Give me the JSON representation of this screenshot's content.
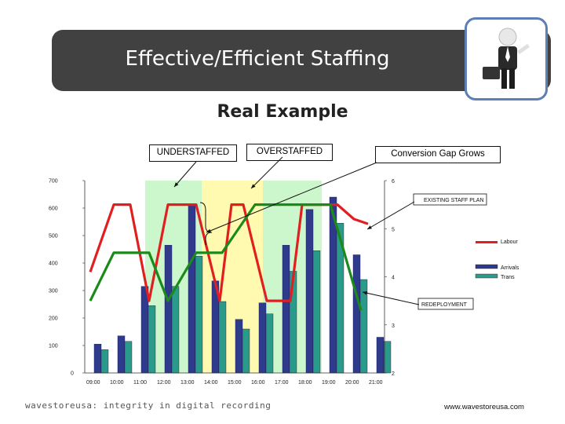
{
  "slide": {
    "title": "Effective/Efficient Staffing",
    "subtitle": "Real Example",
    "footer_logo_text": "wavestoreusa: integrity in digital recording",
    "footer_url": "www.wavestoreusa.com",
    "photo_icon": "businessman-with-briefcase-icon"
  },
  "callouts": {
    "understaffed": "UNDERSTAFFED",
    "overstaffed": "OVERSTAFFED",
    "conversion": "Conversion Gap Grows"
  },
  "annotations": {
    "existing_staff_plan": "EXISTING STAFF PLAN",
    "redeployment": "REDEPLOYMENT"
  },
  "chart_data": {
    "type": "bar",
    "categories": [
      "09:00",
      "10:00",
      "11:00",
      "12:00",
      "13:00",
      "14:00",
      "15:00",
      "16:00",
      "17:00",
      "18:00",
      "19:00",
      "20:00",
      "21:00"
    ],
    "ylim": [
      0,
      700
    ],
    "y_ticks": [
      "0",
      "100",
      "200",
      "300",
      "400",
      "500",
      "600",
      "700"
    ],
    "y2lim": [
      2,
      6
    ],
    "y2_ticks": [
      "2",
      "3",
      "4",
      "5",
      "6"
    ],
    "x_tick_labels": [
      "09:00",
      "10:00",
      "11:00",
      "12:00",
      "13:00",
      "14:00",
      "15:00",
      "16:00",
      "17:00",
      "18:00",
      "19:00",
      "20:00",
      "21:00"
    ],
    "bar_series": [
      {
        "name": "Arrivals",
        "color": "#2e3a8c",
        "values": [
          105,
          135,
          315,
          465,
          615,
          335,
          195,
          255,
          465,
          595,
          640,
          430,
          130
        ]
      },
      {
        "name": "Trans",
        "color": "#2a9a8a",
        "values": [
          85,
          115,
          245,
          315,
          425,
          260,
          160,
          215,
          370,
          445,
          545,
          340,
          115
        ]
      }
    ],
    "line_series": [
      {
        "name": "Labour",
        "color": "#e02020",
        "axis": "y2",
        "x": [
          0,
          1,
          1.7,
          2.5,
          3.3,
          4.5,
          5.5,
          6,
          6.5,
          7.5,
          8.5,
          9,
          10.5,
          11.2,
          11.8
        ],
        "values": [
          4.1,
          5.5,
          5.5,
          3.5,
          5.5,
          5.5,
          3.5,
          5.5,
          5.5,
          3.5,
          3.5,
          5.5,
          5.5,
          5.2,
          5.1
        ]
      },
      {
        "name": "",
        "color": "#1a8a1a",
        "axis": "y2",
        "x": [
          0,
          1,
          2.5,
          3.3,
          4.5,
          5.6,
          7,
          8,
          10.2,
          11.5
        ],
        "values": [
          3.5,
          4.5,
          4.5,
          3.5,
          4.5,
          4.5,
          5.5,
          5.5,
          5.5,
          3.3
        ]
      }
    ],
    "shaded_regions": [
      {
        "label": "green",
        "color": "#ccf7cc",
        "from": 2.5,
        "to": 4.9
      },
      {
        "label": "yellow",
        "color": "#fffab0",
        "from": 4.9,
        "to": 7.5
      },
      {
        "label": "green",
        "color": "#ccf7cc",
        "from": 7.5,
        "to": 10.0
      }
    ],
    "legend": [
      {
        "label": "Labour",
        "kind": "line",
        "color": "#e02020"
      },
      {
        "label": "Arrivals",
        "kind": "bar",
        "color": "#2e3a8c"
      },
      {
        "label": "Trans",
        "kind": "bar",
        "color": "#2a9a8a"
      }
    ],
    "legend_position": "right",
    "grid": false
  }
}
